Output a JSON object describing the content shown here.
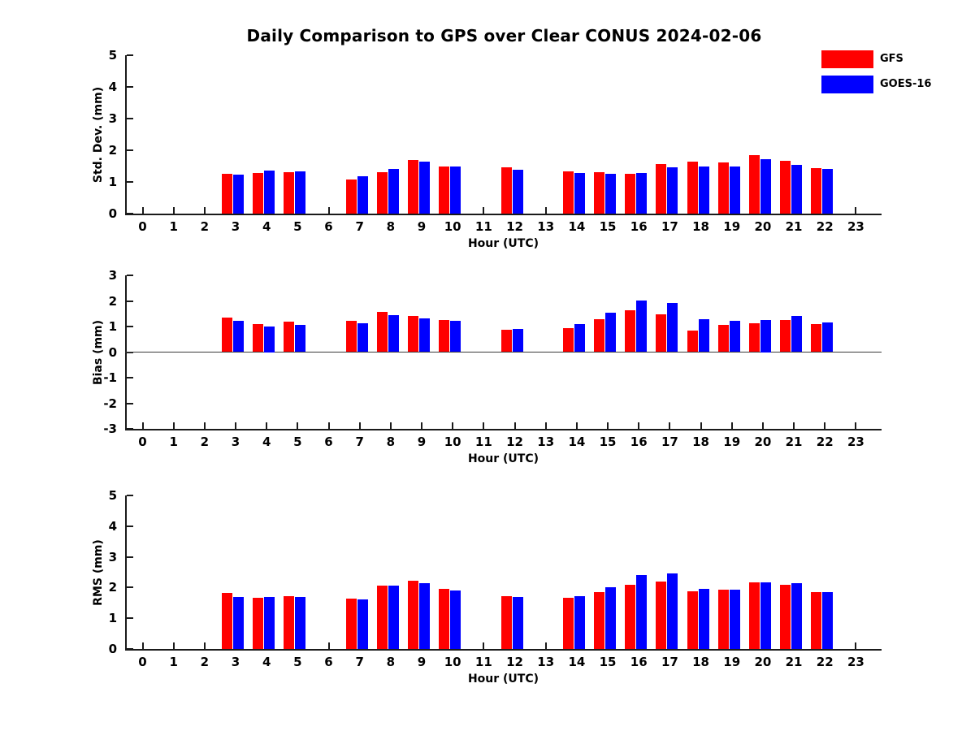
{
  "title": "Daily Comparison to GPS over Clear CONUS 2024-02-06",
  "legend": {
    "entries": [
      {
        "label": "GFS",
        "color": "#ff0000"
      },
      {
        "label": "GOES-16",
        "color": "#0000ff"
      }
    ]
  },
  "axis_color": "#1a1a1a",
  "chart_data": [
    {
      "type": "bar",
      "panel": "std-dev",
      "ylabel": "Std. Dev. (mm)",
      "xlabel": "Hour (UTC)",
      "ylim": [
        0,
        5
      ],
      "yticks": [
        0,
        1,
        2,
        3,
        4,
        5
      ],
      "categories": [
        0,
        1,
        2,
        3,
        4,
        5,
        6,
        7,
        8,
        9,
        10,
        11,
        12,
        13,
        14,
        15,
        16,
        17,
        18,
        19,
        20,
        21,
        22,
        23
      ],
      "grid": false,
      "series": [
        {
          "name": "GFS",
          "color": "#ff0000",
          "values": [
            null,
            null,
            null,
            1.25,
            1.28,
            1.3,
            null,
            1.08,
            1.31,
            1.68,
            1.48,
            null,
            1.47,
            null,
            1.33,
            1.3,
            1.25,
            1.57,
            1.65,
            1.62,
            1.85,
            1.67,
            1.44,
            null
          ]
        },
        {
          "name": "GOES-16",
          "color": "#0000ff",
          "values": [
            null,
            null,
            null,
            1.22,
            1.36,
            1.33,
            null,
            1.17,
            1.42,
            1.64,
            1.5,
            null,
            1.39,
            null,
            1.27,
            1.25,
            1.28,
            1.47,
            1.5,
            1.49,
            1.71,
            1.55,
            1.42,
            null
          ]
        }
      ]
    },
    {
      "type": "bar",
      "panel": "bias",
      "ylabel": "Bias (mm)",
      "xlabel": "Hour (UTC)",
      "ylim": [
        -3,
        3
      ],
      "yticks": [
        -3,
        -2,
        -1,
        0,
        1,
        2,
        3
      ],
      "categories": [
        0,
        1,
        2,
        3,
        4,
        5,
        6,
        7,
        8,
        9,
        10,
        11,
        12,
        13,
        14,
        15,
        16,
        17,
        18,
        19,
        20,
        21,
        22,
        23
      ],
      "grid": false,
      "series": [
        {
          "name": "GFS",
          "color": "#ff0000",
          "values": [
            null,
            null,
            null,
            1.34,
            1.08,
            1.18,
            null,
            1.21,
            1.57,
            1.4,
            1.26,
            null,
            0.88,
            null,
            0.95,
            1.27,
            1.62,
            1.49,
            0.85,
            1.06,
            1.12,
            1.26,
            1.11,
            null
          ]
        },
        {
          "name": "GOES-16",
          "color": "#0000ff",
          "values": [
            null,
            null,
            null,
            1.21,
            1.0,
            1.05,
            null,
            1.13,
            1.45,
            1.33,
            1.21,
            null,
            0.92,
            null,
            1.11,
            1.55,
            2.02,
            1.93,
            1.27,
            1.23,
            1.25,
            1.42,
            1.17,
            null
          ]
        }
      ]
    },
    {
      "type": "bar",
      "panel": "rms",
      "ylabel": "RMS (mm)",
      "xlabel": "Hour (UTC)",
      "ylim": [
        0,
        5
      ],
      "yticks": [
        0,
        1,
        2,
        3,
        4,
        5
      ],
      "categories": [
        0,
        1,
        2,
        3,
        4,
        5,
        6,
        7,
        8,
        9,
        10,
        11,
        12,
        13,
        14,
        15,
        16,
        17,
        18,
        19,
        20,
        21,
        22,
        23
      ],
      "grid": false,
      "series": [
        {
          "name": "GFS",
          "color": "#ff0000",
          "values": [
            null,
            null,
            null,
            1.83,
            1.66,
            1.72,
            null,
            1.64,
            2.06,
            2.21,
            1.96,
            null,
            1.73,
            null,
            1.66,
            1.85,
            2.09,
            2.2,
            1.88,
            1.94,
            2.16,
            2.1,
            1.84,
            null
          ]
        },
        {
          "name": "GOES-16",
          "color": "#0000ff",
          "values": [
            null,
            null,
            null,
            1.7,
            1.68,
            1.7,
            null,
            1.61,
            2.06,
            2.13,
            1.91,
            null,
            1.7,
            null,
            1.72,
            2.02,
            2.42,
            2.45,
            1.95,
            1.94,
            2.16,
            2.14,
            1.84,
            null
          ]
        }
      ]
    }
  ]
}
